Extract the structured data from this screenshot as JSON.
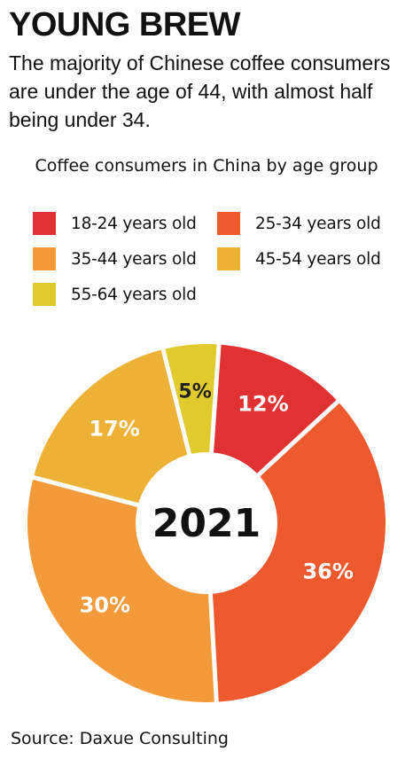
{
  "headline": "YOUNG BREW",
  "deck": "The majority of Chinese coffee consumers are under the age of 44, with almost half being under 34.",
  "source": "Source: Daxue Consulting",
  "chart_data": {
    "type": "pie",
    "title": "Coffee consumers in China by age group",
    "center_label": "2021",
    "legend_position": "top",
    "series": [
      {
        "name": "18-24 years old",
        "value": 12,
        "label": "12%",
        "color": "#e03232"
      },
      {
        "name": "25-34 years old",
        "value": 36,
        "label": "36%",
        "color": "#ee5a2d"
      },
      {
        "name": "35-44 years old",
        "value": 30,
        "label": "30%",
        "color": "#f39a3a"
      },
      {
        "name": "45-54 years old",
        "value": 17,
        "label": "17%",
        "color": "#edb136"
      },
      {
        "name": "55-64 years old",
        "value": 5,
        "label": "5%",
        "color": "#e1ca2e"
      }
    ]
  }
}
